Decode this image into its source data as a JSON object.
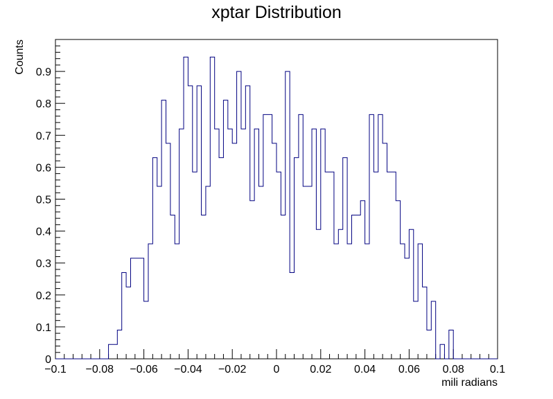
{
  "chart_data": {
    "type": "histogram",
    "title": "xptar Distribution",
    "xlabel": "mili radians",
    "ylabel": "Counts",
    "xlim": [
      -0.1,
      0.1
    ],
    "ylim": [
      0,
      1.0
    ],
    "bin_start": -0.1,
    "bin_width": 0.002,
    "x_ticks": [
      "−0.1",
      "−0.08",
      "−0.06",
      "−0.04",
      "−0.02",
      "0",
      "0.02",
      "0.04",
      "0.06",
      "0.08",
      "0.1"
    ],
    "x_tick_values": [
      -0.1,
      -0.08,
      -0.06,
      -0.04,
      -0.02,
      0,
      0.02,
      0.04,
      0.06,
      0.08,
      0.1
    ],
    "y_ticks": [
      "0",
      "0.1",
      "0.2",
      "0.3",
      "0.4",
      "0.5",
      "0.6",
      "0.7",
      "0.8",
      "0.9"
    ],
    "y_tick_values": [
      0,
      0.1,
      0.2,
      0.3,
      0.4,
      0.5,
      0.6,
      0.7,
      0.8,
      0.9
    ],
    "grid": false,
    "line_color": "#000080",
    "values": [
      0,
      0,
      0,
      0,
      0,
      0,
      0,
      0,
      0,
      0,
      0,
      0,
      0.045,
      0.045,
      0.09,
      0.27,
      0.225,
      0.315,
      0.315,
      0.315,
      0.18,
      0.36,
      0.63,
      0.54,
      0.81,
      0.675,
      0.45,
      0.36,
      0.72,
      0.945,
      0.855,
      0.585,
      0.855,
      0.45,
      0.54,
      0.945,
      0.72,
      0.63,
      0.81,
      0.72,
      0.675,
      0.9,
      0.72,
      0.855,
      0.495,
      0.72,
      0.54,
      0.765,
      0.765,
      0.675,
      0.585,
      0.45,
      0.9,
      0.27,
      0.63,
      0.765,
      0.54,
      0.54,
      0.72,
      0.405,
      0.72,
      0.585,
      0.585,
      0.36,
      0.405,
      0.63,
      0.36,
      0.45,
      0.45,
      0.495,
      0.36,
      0.765,
      0.585,
      0.765,
      0.675,
      0.585,
      0.585,
      0.495,
      0.36,
      0.315,
      0.405,
      0.18,
      0.36,
      0.225,
      0.09,
      0.18,
      0,
      0.045,
      0,
      0.09,
      0,
      0,
      0,
      0,
      0,
      0,
      0,
      0,
      0,
      0
    ]
  }
}
